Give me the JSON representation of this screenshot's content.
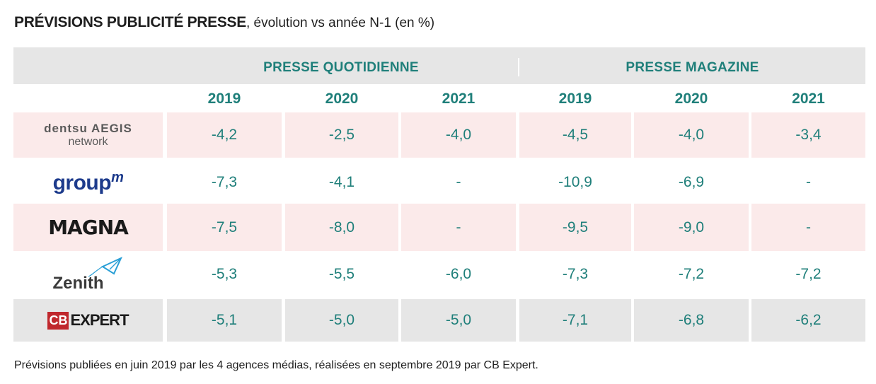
{
  "title": {
    "main": "PRÉVISIONS PUBLICITÉ PRESSE",
    "sub": ", évolution vs année N-1 (en %)"
  },
  "groups": [
    "PRESSE QUOTIDIENNE",
    "PRESSE MAGAZINE"
  ],
  "years": [
    "2019",
    "2020",
    "2021",
    "2019",
    "2020",
    "2021"
  ],
  "logos": {
    "dentsu_line1": "dentsu AEGIS",
    "dentsu_line2": "network",
    "groupm": "group",
    "groupm_sup": "m",
    "magna": "MAGNA",
    "zenith": "Zenith",
    "cbexpert_badge": "CB",
    "cbexpert_text": "EXPERT"
  },
  "colors": {
    "accent": "#1f7f7a",
    "pink_row": "#fbeaea",
    "grey_row": "#e6e6e6"
  },
  "chart_data": {
    "type": "table",
    "columns": [
      {
        "group": "PRESSE QUOTIDIENNE",
        "year": "2019"
      },
      {
        "group": "PRESSE QUOTIDIENNE",
        "year": "2020"
      },
      {
        "group": "PRESSE QUOTIDIENNE",
        "year": "2021"
      },
      {
        "group": "PRESSE MAGAZINE",
        "year": "2019"
      },
      {
        "group": "PRESSE MAGAZINE",
        "year": "2020"
      },
      {
        "group": "PRESSE MAGAZINE",
        "year": "2021"
      }
    ],
    "rows": [
      {
        "agency": "dentsu AEGIS network",
        "values": [
          "-4,2",
          "-2,5",
          "-4,0",
          "-4,5",
          "-4,0",
          "-3,4"
        ]
      },
      {
        "agency": "groupm",
        "values": [
          "-7,3",
          "-4,1",
          "-",
          "-10,9",
          "-6,9",
          "-"
        ]
      },
      {
        "agency": "MAGNA",
        "values": [
          "-7,5",
          "-8,0",
          "-",
          "-9,5",
          "-9,0",
          "-"
        ]
      },
      {
        "agency": "Zenith",
        "values": [
          "-5,3",
          "-5,5",
          "-6,0",
          "-7,3",
          "-7,2",
          "-7,2"
        ]
      },
      {
        "agency": "CB EXPERT",
        "values": [
          "-5,1",
          "-5,0",
          "-5,0",
          "-7,1",
          "-6,8",
          "-6,2"
        ]
      }
    ]
  },
  "footnote": "Prévisions publiées en juin 2019 par les 4 agences médias, réalisées en septembre 2019 par CB Expert."
}
